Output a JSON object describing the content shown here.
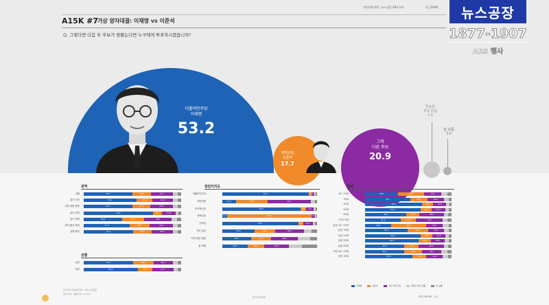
{
  "header": {
    "code": "A15K #7",
    "title": "가상 양자대결: 이재명 vs 이준석",
    "question": "Q. 그렇다면 다음 두 후보가 맞붙는다면 누구에게 투표하시겠습니까?",
    "source_note_1": "미디어토마토 / 뉴스공장 ARS 조사",
    "source_note_2": "CL_NAME"
  },
  "broadcaster": {
    "name": "뉴스공장",
    "phone": "1877-1907",
    "ars_label": "ARS 행사"
  },
  "colors": {
    "lee_jae_myung": "#1e63b5",
    "lee_jun_seok": "#f08a2a",
    "other": "#8b2aa3",
    "none": "#c9c9c9",
    "dont_know": "#8d8d8d"
  },
  "chart_data": [
    {
      "type": "bubble",
      "series": [
        {
          "name": "더불어민주당\n이재명",
          "value": 53.2,
          "color": "#1e63b5"
        },
        {
          "name": "개혁신당\n이준석",
          "value": 17.7,
          "color": "#f08a2a"
        },
        {
          "name": "그외\n다른 후보",
          "value": 20.9,
          "color": "#8b2aa3"
        },
        {
          "name": "투표할\n후보 없음",
          "value": 4.6,
          "color": "#c9c9c9"
        },
        {
          "name": "잘 모름",
          "value": 3.5,
          "color": "#8d8d8d"
        }
      ]
    },
    {
      "type": "bar",
      "stacked": true,
      "title": "권역",
      "categories": [
        "서울",
        "경기·인천",
        "대전·세종·충청",
        "광주·전라",
        "대구·경북",
        "부산·울산·경남",
        "강원·제주"
      ],
      "series": [
        {
          "name": "이재명",
          "values": [
            50.3,
            54.1,
            50.2,
            70.8,
            39.4,
            47.0,
            51.0
          ]
        },
        {
          "name": "이준석",
          "values": [
            18.9,
            16.5,
            17.8,
            9.4,
            22.6,
            20.6,
            18.5
          ]
        },
        {
          "name": "그외",
          "values": [
            22.1,
            21.0,
            23.5,
            13.9,
            28.4,
            24.0,
            22.0
          ]
        },
        {
          "name": "없음",
          "values": [
            5.0,
            4.8,
            5.2,
            3.4,
            5.6,
            5.0,
            5.0
          ]
        },
        {
          "name": "모름",
          "values": [
            3.7,
            3.6,
            3.3,
            2.5,
            4.0,
            3.4,
            3.5
          ]
        }
      ]
    },
    {
      "type": "bar",
      "stacked": true,
      "title": "성별",
      "categories": [
        "남성",
        "여성"
      ],
      "series": [
        {
          "name": "이재명",
          "values": [
            51.0,
            55.4
          ]
        },
        {
          "name": "이준석",
          "values": [
            20.5,
            14.9
          ]
        },
        {
          "name": "그외",
          "values": [
            20.1,
            21.7
          ]
        },
        {
          "name": "없음",
          "values": [
            4.9,
            4.3
          ]
        },
        {
          "name": "모름",
          "values": [
            3.5,
            3.7
          ]
        }
      ]
    },
    {
      "type": "bar",
      "stacked": true,
      "title": "정당지지도",
      "categories": [
        "더불어민주당",
        "국민의힘",
        "조국혁신당",
        "개혁신당",
        "진보당",
        "기타 정당",
        "지지 정당 없음",
        "잘 모름"
      ],
      "series": [
        {
          "name": "이재명",
          "values": [
            91.2,
            14.3,
            82.5,
            5.2,
            80.1,
            34.0,
            30.2,
            26.5
          ]
        },
        {
          "name": "이준석",
          "values": [
            3.1,
            33.8,
            6.0,
            89.0,
            5.4,
            22.0,
            21.5,
            18.0
          ]
        },
        {
          "name": "그외",
          "values": [
            3.0,
            45.1,
            8.0,
            3.5,
            10.0,
            30.0,
            28.3,
            25.5
          ]
        },
        {
          "name": "없음",
          "values": [
            1.5,
            4.4,
            2.0,
            1.3,
            2.5,
            8.0,
            12.5,
            14.0
          ]
        },
        {
          "name": "모름",
          "values": [
            1.2,
            2.4,
            1.5,
            1.0,
            2.0,
            6.0,
            7.5,
            16.0
          ]
        }
      ]
    },
    {
      "type": "bar",
      "stacked": true,
      "title": "연령",
      "categories": [
        "18~29세",
        "30대",
        "40대",
        "50대",
        "60대",
        "70세 이상",
        "남성 18~29세",
        "남성 30대",
        "남성 40대",
        "남성 50대",
        "남성 60대",
        "여성 18~29세",
        "여성 30대"
      ],
      "series": [
        {
          "name": "이재명",
          "values": [
            38.0,
            52.1,
            66.0,
            64.2,
            48.0,
            41.5,
            30.5,
            49.0,
            64.0,
            62.0,
            45.0,
            45.0,
            55.0
          ]
        },
        {
          "name": "이준석",
          "values": [
            30.5,
            20.0,
            12.5,
            12.4,
            15.0,
            17.5,
            40.0,
            24.0,
            14.0,
            14.0,
            17.0,
            21.0,
            16.0
          ]
        },
        {
          "name": "그외",
          "values": [
            19.5,
            18.9,
            15.5,
            16.2,
            28.0,
            31.0,
            19.5,
            18.0,
            15.0,
            16.0,
            29.0,
            22.0,
            19.0
          ]
        },
        {
          "name": "없음",
          "values": [
            7.0,
            5.5,
            3.5,
            4.2,
            5.0,
            5.5,
            6.5,
            5.5,
            4.0,
            4.5,
            5.0,
            7.0,
            6.0
          ]
        },
        {
          "name": "모름",
          "values": [
            5.0,
            3.5,
            2.5,
            3.0,
            4.0,
            4.5,
            3.5,
            3.5,
            3.0,
            3.5,
            4.0,
            5.0,
            4.0
          ]
        }
      ]
    }
  ],
  "legend": [
    "이재명",
    "이준석",
    "그외 다른 후보",
    "투표할 후보 없음",
    "잘 모름"
  ],
  "footer": {
    "survey_note_1": "조사기관 미디어토마토 · 의뢰 뉴스공장",
    "survey_note_2": "무선 ARS · 표본오차 ±3.1%p",
    "center": "미디어토마토",
    "right": "미디어토마토 · 1/3"
  }
}
